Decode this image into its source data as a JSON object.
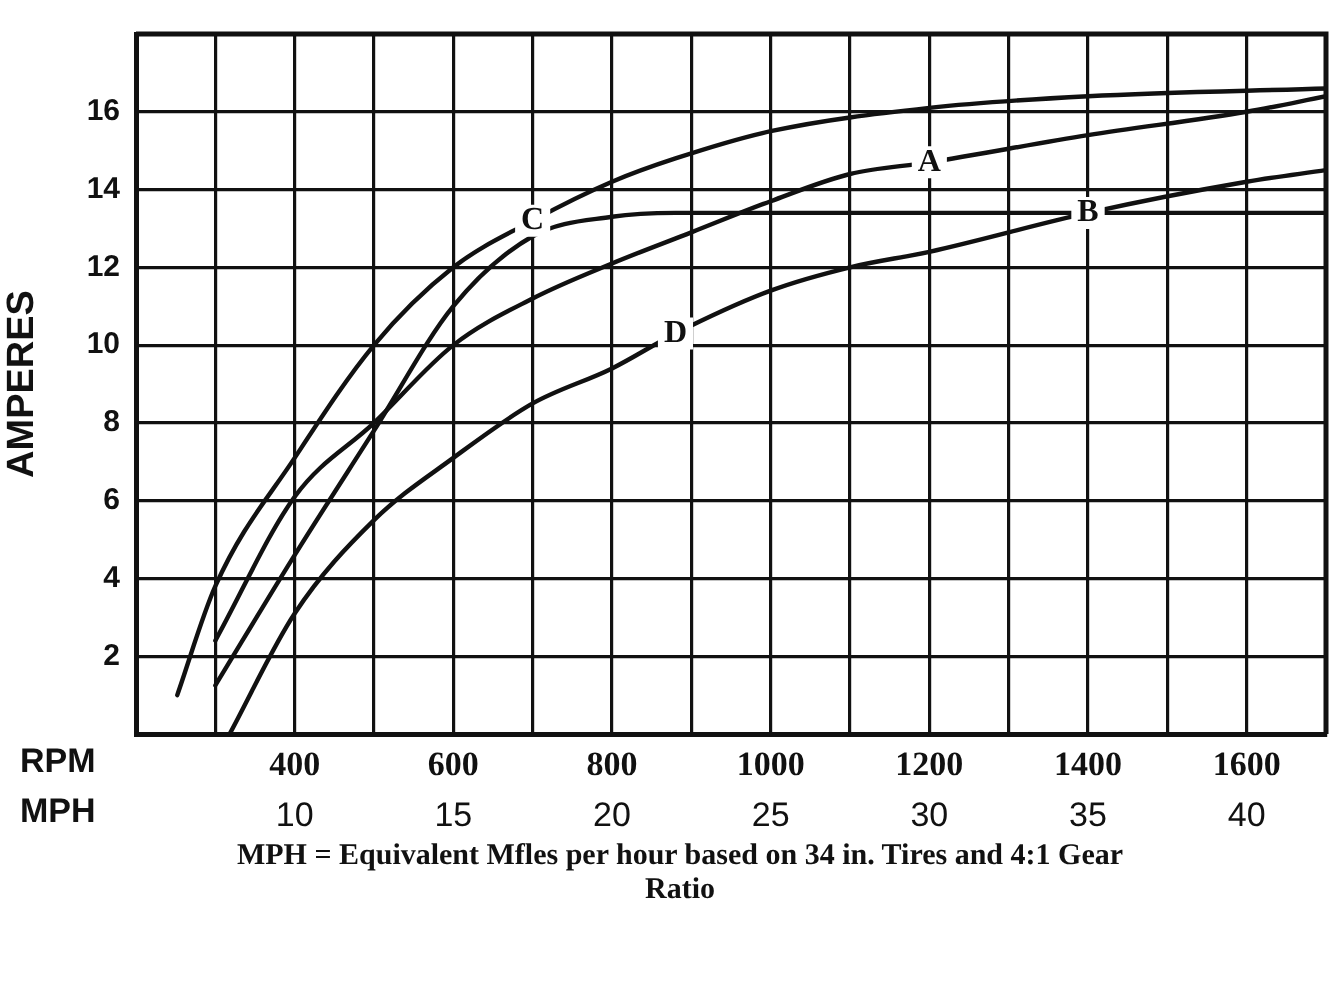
{
  "chart_data": {
    "type": "line",
    "ylabel": "AMPERES",
    "xlabel": "RPM",
    "x2label": "MPH",
    "xlim": [
      200,
      1700
    ],
    "xticks": [
      {
        "value": 300,
        "label": null
      },
      400,
      {
        "value": 500,
        "label": null
      },
      600,
      {
        "value": 700,
        "label": null
      },
      800,
      {
        "value": 900,
        "label": null
      },
      1000,
      {
        "value": 1100,
        "label": null
      },
      1200,
      {
        "value": 1300,
        "label": null
      },
      1400,
      {
        "value": 1500,
        "label": null
      },
      1600
    ],
    "x2lim": [
      5,
      42.5
    ],
    "x2ticks": [
      10,
      15,
      20,
      25,
      30,
      35,
      40
    ],
    "ylim": [
      0,
      18
    ],
    "yticks": [
      2,
      4,
      6,
      8,
      10,
      12,
      14,
      16
    ],
    "grid": true,
    "legend": false,
    "marker": "none",
    "line_style": "solid",
    "series": [
      {
        "name": "C",
        "color": "#111111",
        "x": [
          252,
          300,
          400,
          500,
          600,
          700,
          800,
          880,
          1000,
          1200,
          1400,
          1700
        ],
        "values": [
          1.0,
          3.8,
          7.1,
          10.0,
          12.0,
          13.2,
          14.2,
          14.8,
          15.5,
          16.1,
          16.4,
          16.6
        ]
      },
      {
        "name": "A",
        "color": "#111111",
        "x": [
          300,
          400,
          500,
          600,
          700,
          800,
          900,
          1000,
          1100,
          1200,
          1400,
          1600,
          1700
        ],
        "values": [
          2.4,
          6.1,
          8.0,
          10.0,
          11.2,
          12.1,
          12.9,
          13.7,
          14.4,
          14.7,
          15.4,
          16.0,
          16.4
        ]
      },
      {
        "name": "B",
        "color": "#111111",
        "x": [
          300,
          400,
          500,
          600,
          700,
          800,
          880,
          1000,
          1200,
          1400,
          1700
        ],
        "values": [
          1.25,
          4.6,
          7.8,
          11.0,
          12.8,
          13.3,
          13.4,
          13.4,
          13.4,
          13.4,
          13.4
        ]
      },
      {
        "name": "D",
        "color": "#111111",
        "x": [
          318,
          400,
          500,
          600,
          700,
          800,
          880,
          1000,
          1100,
          1200,
          1400,
          1600,
          1700
        ],
        "values": [
          0,
          3.1,
          5.5,
          7.1,
          8.5,
          9.4,
          10.3,
          11.4,
          12.0,
          12.4,
          13.4,
          14.2,
          14.5
        ]
      }
    ],
    "annotations": [
      "MPH = Equivalent Mfles per hour based on 34 in. Tires and 4:1 Gear Ratio"
    ]
  }
}
